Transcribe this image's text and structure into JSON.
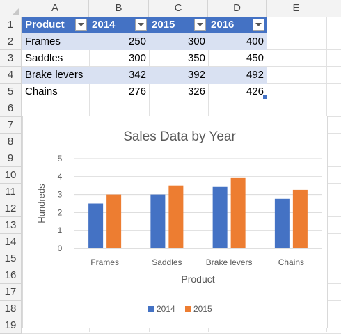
{
  "columns": [
    "A",
    "B",
    "C",
    "D",
    "E"
  ],
  "rows": [
    "1",
    "2",
    "3",
    "4",
    "5",
    "6",
    "7",
    "8",
    "9",
    "10",
    "11",
    "12",
    "13",
    "14",
    "15",
    "16",
    "17",
    "18",
    "19"
  ],
  "table": {
    "headers": [
      "Product",
      "2014",
      "2015",
      "2016"
    ],
    "rows": [
      [
        "Frames",
        "250",
        "300",
        "400"
      ],
      [
        "Saddles",
        "300",
        "350",
        "450"
      ],
      [
        "Brake levers",
        "342",
        "392",
        "492"
      ],
      [
        "Chains",
        "276",
        "326",
        "426"
      ]
    ]
  },
  "chart_data": {
    "type": "bar",
    "title": "Sales Data by Year",
    "xlabel": "Product",
    "ylabel": "Hundreds",
    "categories": [
      "Frames",
      "Saddles",
      "Brake levers",
      "Chains"
    ],
    "series": [
      {
        "name": "2014",
        "values": [
          2.5,
          3.0,
          3.42,
          2.76
        ],
        "color": "#4472c4"
      },
      {
        "name": "2015",
        "values": [
          3.0,
          3.5,
          3.92,
          3.26
        ],
        "color": "#ed7d31"
      }
    ],
    "ylim": [
      0,
      5
    ],
    "yticks": [
      "0",
      "1",
      "2",
      "3",
      "4",
      "5"
    ],
    "grid": true,
    "legend": "bottom"
  }
}
